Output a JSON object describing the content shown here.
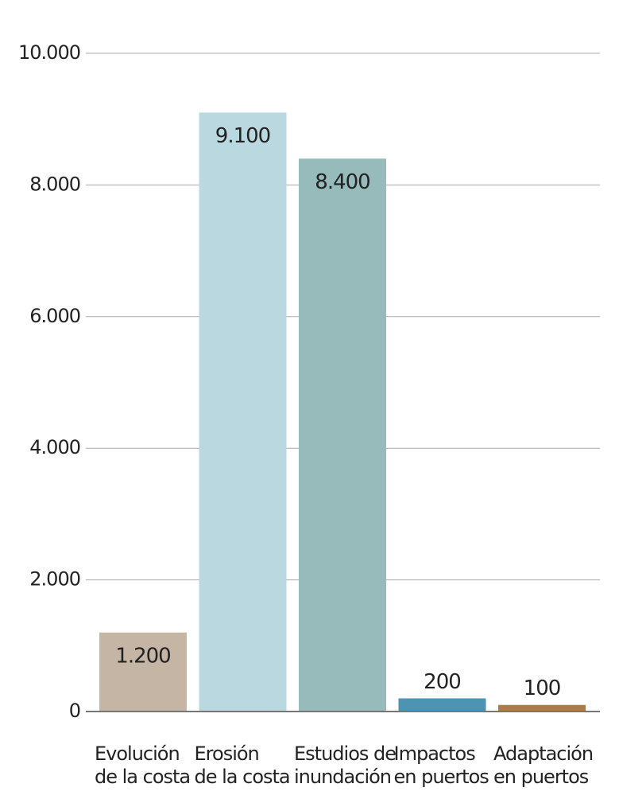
{
  "chart_data": {
    "type": "bar",
    "categories": [
      [
        "Evolución",
        "de la costa"
      ],
      [
        "Erosión",
        "de la costa"
      ],
      [
        "Estudios de",
        "inundación"
      ],
      [
        "Impactos",
        "en puertos"
      ],
      [
        "Adaptación",
        "en puertos"
      ]
    ],
    "values": [
      1200,
      9100,
      8400,
      200,
      100
    ],
    "value_labels": [
      "1.200",
      "9.100",
      "8.400",
      "200",
      "100"
    ],
    "colors": [
      "#c4b5a5",
      "#b9d8df",
      "#97babb",
      "#4e93b1",
      "#a97c4b"
    ],
    "ylim": [
      0,
      10000
    ],
    "yticks": [
      0,
      {
        "value": 2000,
        "label": "2.000"
      },
      {
        "value": 4000,
        "label": "4.000"
      },
      {
        "value": 6000,
        "label": "6.000"
      },
      {
        "value": 8000,
        "label": "8.000"
      },
      {
        "value": 10000,
        "label": "10.000"
      }
    ],
    "grid": true
  }
}
